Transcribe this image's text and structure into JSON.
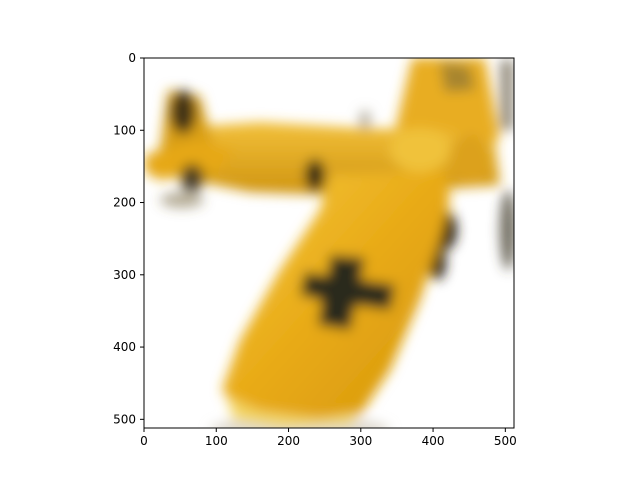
{
  "chart_data": {
    "type": "image",
    "title": "",
    "xlabel": "",
    "ylabel": "",
    "xlim": [
      0,
      512
    ],
    "ylim": [
      512,
      0
    ],
    "xticks": [
      0,
      100,
      200,
      300,
      400,
      500
    ],
    "yticks": [
      0,
      100,
      200,
      300,
      400,
      500
    ],
    "grid": false,
    "image": {
      "subject": "yellow toy biplane",
      "background": "white",
      "colors": {
        "body": "#e6a812",
        "body_light": "#f3c53a",
        "shadow": "#b07c08",
        "cross": "#2b2b1e",
        "tire": "#2a2418",
        "background": "#ffffff"
      }
    }
  }
}
